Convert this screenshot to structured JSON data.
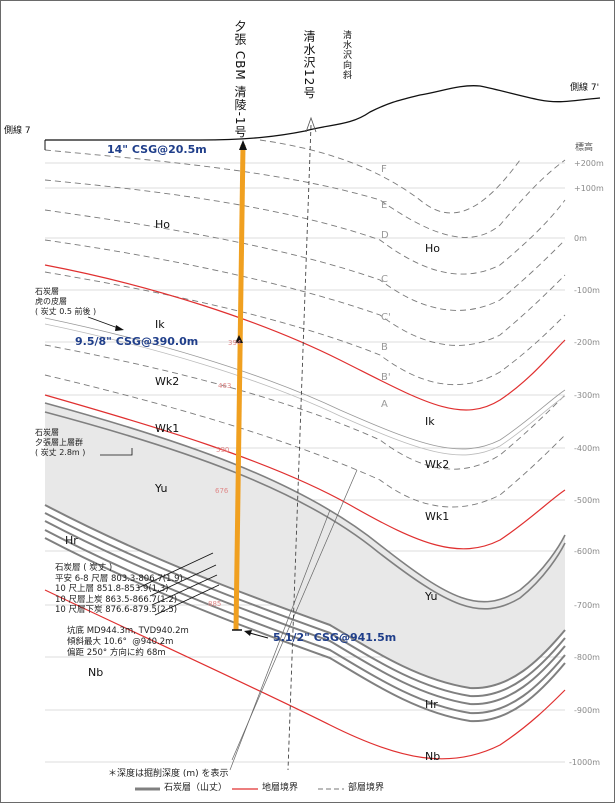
{
  "wells": {
    "main_well": "夕張 CBM 清陵-1号",
    "well_12": "清水沢12号",
    "syncline": "清水沢向斜"
  },
  "section": {
    "left_end": "側線 7",
    "right_end": "側線 7'",
    "elevation_title": "標高"
  },
  "elevation_ticks": [
    "+200m",
    "+100m",
    "0m",
    "-100m",
    "-200m",
    "-300m",
    "-400m",
    "-500m",
    "-600m",
    "-700m",
    "-800m",
    "-900m",
    "-1000m"
  ],
  "key_beds": [
    "F",
    "E",
    "D",
    "C",
    "C'",
    "B",
    "B'",
    "A"
  ],
  "formations": {
    "ho_left": "Ho",
    "ho_right": "Ho",
    "ik_left": "Ik",
    "ik_right": "Ik",
    "wk2_left": "Wk2",
    "wk2_right": "Wk2",
    "wk1_left": "Wk1",
    "wk1_right": "Wk1",
    "yu_left": "Yu",
    "yu_right": "Yu",
    "hr_left": "Hr",
    "hr_right": "Hr",
    "nb_left": "Nb",
    "nb_right": "Nb"
  },
  "casing": {
    "csg1": "14\" CSG@20.5m",
    "csg2": "9.5/8\" CSG@390.0m",
    "csg3": "5.1/2\" CSG@941.5m"
  },
  "depth_marks": [
    "394",
    "463",
    "590",
    "676",
    "885"
  ],
  "annotations": {
    "tora_seam": "石炭層\n虎の皮層\n( 炭丈 0.5 前後 )",
    "yubari_upper": "石炭層\n夕張層上層群\n( 炭丈 2.8m )",
    "seam_list": "石炭層 ( 炭丈 )\n平安 6-8 尺層 803.3-806.7(1.9)\n10 尺上層 851.8-853.9(1.3)\n10 尺層上炭 863.5-866.7(1.2)\n10 尺層下炭 876.6-879.5(2.5)",
    "bottom": "坑底 MD944.3m, TVD940.2m\n傾斜最大 10.6°  @940.2m\n偏距 250° 方向に約 68m"
  },
  "footnote": "＊深度は掘削深度 (m) を表示",
  "legend": {
    "coal": "石炭層（山丈）",
    "formation": "地層境界",
    "member": "部層境界"
  },
  "colors": {
    "well": "#f0a020",
    "formation_boundary": "#e03030",
    "coal_band": "#e6e6e6",
    "member_boundary": "#777777"
  }
}
